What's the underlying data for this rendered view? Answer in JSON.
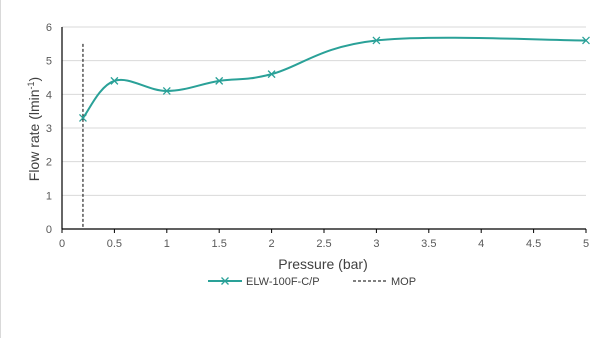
{
  "chart_data": {
    "type": "line",
    "title": "",
    "xlabel": "Pressure (bar)",
    "ylabel_main": "Flow rate (lmin",
    "ylabel_sup": "-1",
    "ylabel_close": ")",
    "xlim": [
      0,
      5
    ],
    "ylim": [
      0,
      6
    ],
    "x_ticks": [
      "0",
      "0.5",
      "1",
      "1.5",
      "2",
      "2.5",
      "3",
      "3.5",
      "4",
      "4.5",
      "5"
    ],
    "y_ticks": [
      "0",
      "1",
      "2",
      "3",
      "4",
      "5",
      "6"
    ],
    "grid": "horizontal",
    "legend_position": "bottom",
    "series": [
      {
        "name": "ELW-100F-C/P",
        "color": "#2aa198",
        "marker": "x",
        "smooth": true,
        "x": [
          0.2,
          0.5,
          1,
          1.5,
          2,
          3,
          5
        ],
        "y": [
          3.3,
          4.4,
          4.1,
          4.4,
          4.6,
          5.6,
          5.6
        ]
      }
    ],
    "reference_lines": [
      {
        "name": "MOP",
        "x": 0.2,
        "style": "dashed",
        "color": "#000000"
      }
    ]
  }
}
